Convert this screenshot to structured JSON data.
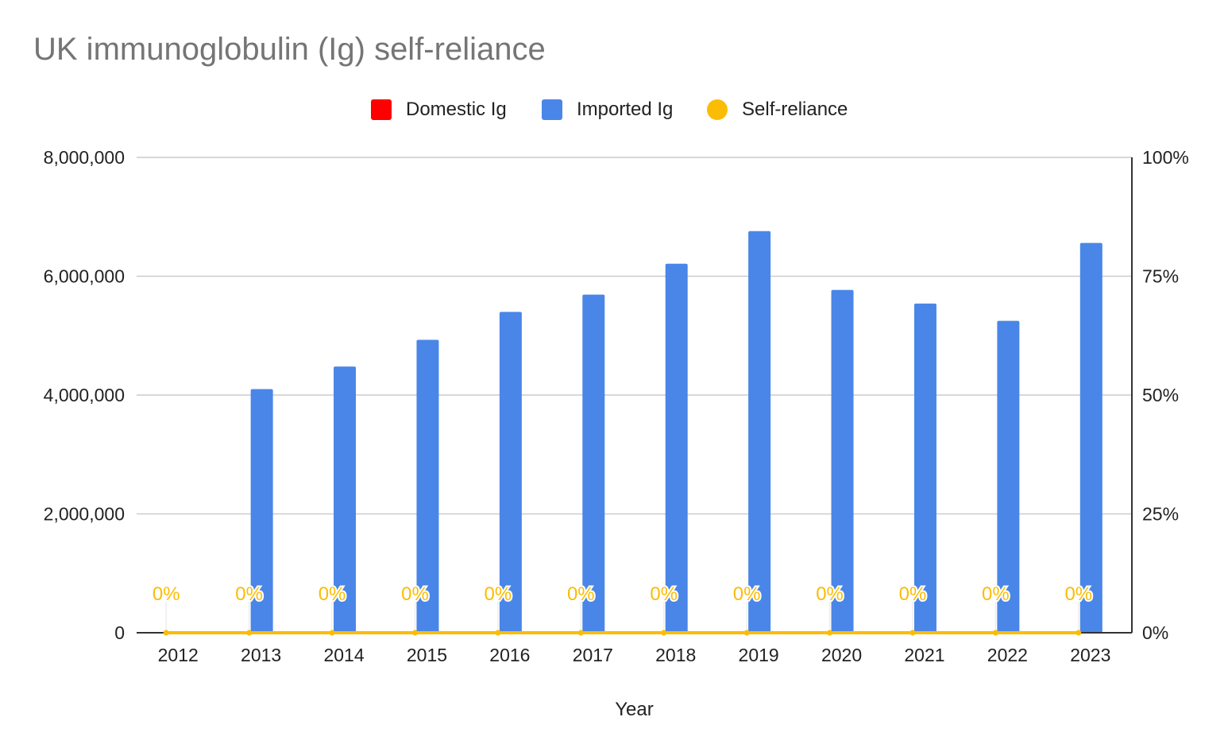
{
  "chart_data": {
    "type": "bar",
    "title": "UK immunoglobulin (Ig) self-reliance",
    "xlabel": "Year",
    "ylabel": "",
    "y2label": "",
    "categories": [
      "2012",
      "2013",
      "2014",
      "2015",
      "2016",
      "2017",
      "2018",
      "2019",
      "2020",
      "2021",
      "2022",
      "2023"
    ],
    "series": [
      {
        "name": "Domestic Ig",
        "type": "bar",
        "axis": "left",
        "color": "#ff0000",
        "values": [
          0,
          0,
          0,
          0,
          0,
          0,
          0,
          0,
          0,
          0,
          0,
          0
        ]
      },
      {
        "name": "Imported Ig",
        "type": "bar",
        "axis": "left",
        "color": "#4a86e8",
        "values": [
          0,
          4100000,
          4480000,
          4930000,
          5400000,
          5690000,
          6210000,
          6760000,
          5770000,
          5540000,
          5250000,
          6560000
        ]
      },
      {
        "name": "Self-reliance",
        "type": "line",
        "axis": "right",
        "color": "#fbbc04",
        "values": [
          0,
          0,
          0,
          0,
          0,
          0,
          0,
          0,
          0,
          0,
          0,
          0
        ],
        "data_labels": [
          "0%",
          "0%",
          "0%",
          "0%",
          "0%",
          "0%",
          "0%",
          "0%",
          "0%",
          "0%",
          "0%",
          "0%"
        ]
      }
    ],
    "ylim": [
      0,
      8000000
    ],
    "yticks": [
      {
        "value": 0,
        "label": "0"
      },
      {
        "value": 2000000,
        "label": "2,000,000"
      },
      {
        "value": 4000000,
        "label": "4,000,000"
      },
      {
        "value": 6000000,
        "label": "6,000,000"
      },
      {
        "value": 8000000,
        "label": "8,000,000"
      }
    ],
    "y2lim": [
      0,
      1
    ],
    "y2ticks": [
      {
        "value": 0,
        "label": "0%"
      },
      {
        "value": 0.25,
        "label": "25%"
      },
      {
        "value": 0.5,
        "label": "50%"
      },
      {
        "value": 0.75,
        "label": "75%"
      },
      {
        "value": 1,
        "label": "100%"
      }
    ],
    "grid": true,
    "legend_position": "top"
  },
  "colors": {
    "title": "#757575",
    "grid": "#cccccc",
    "axis": "#333333",
    "text": "#222222"
  }
}
